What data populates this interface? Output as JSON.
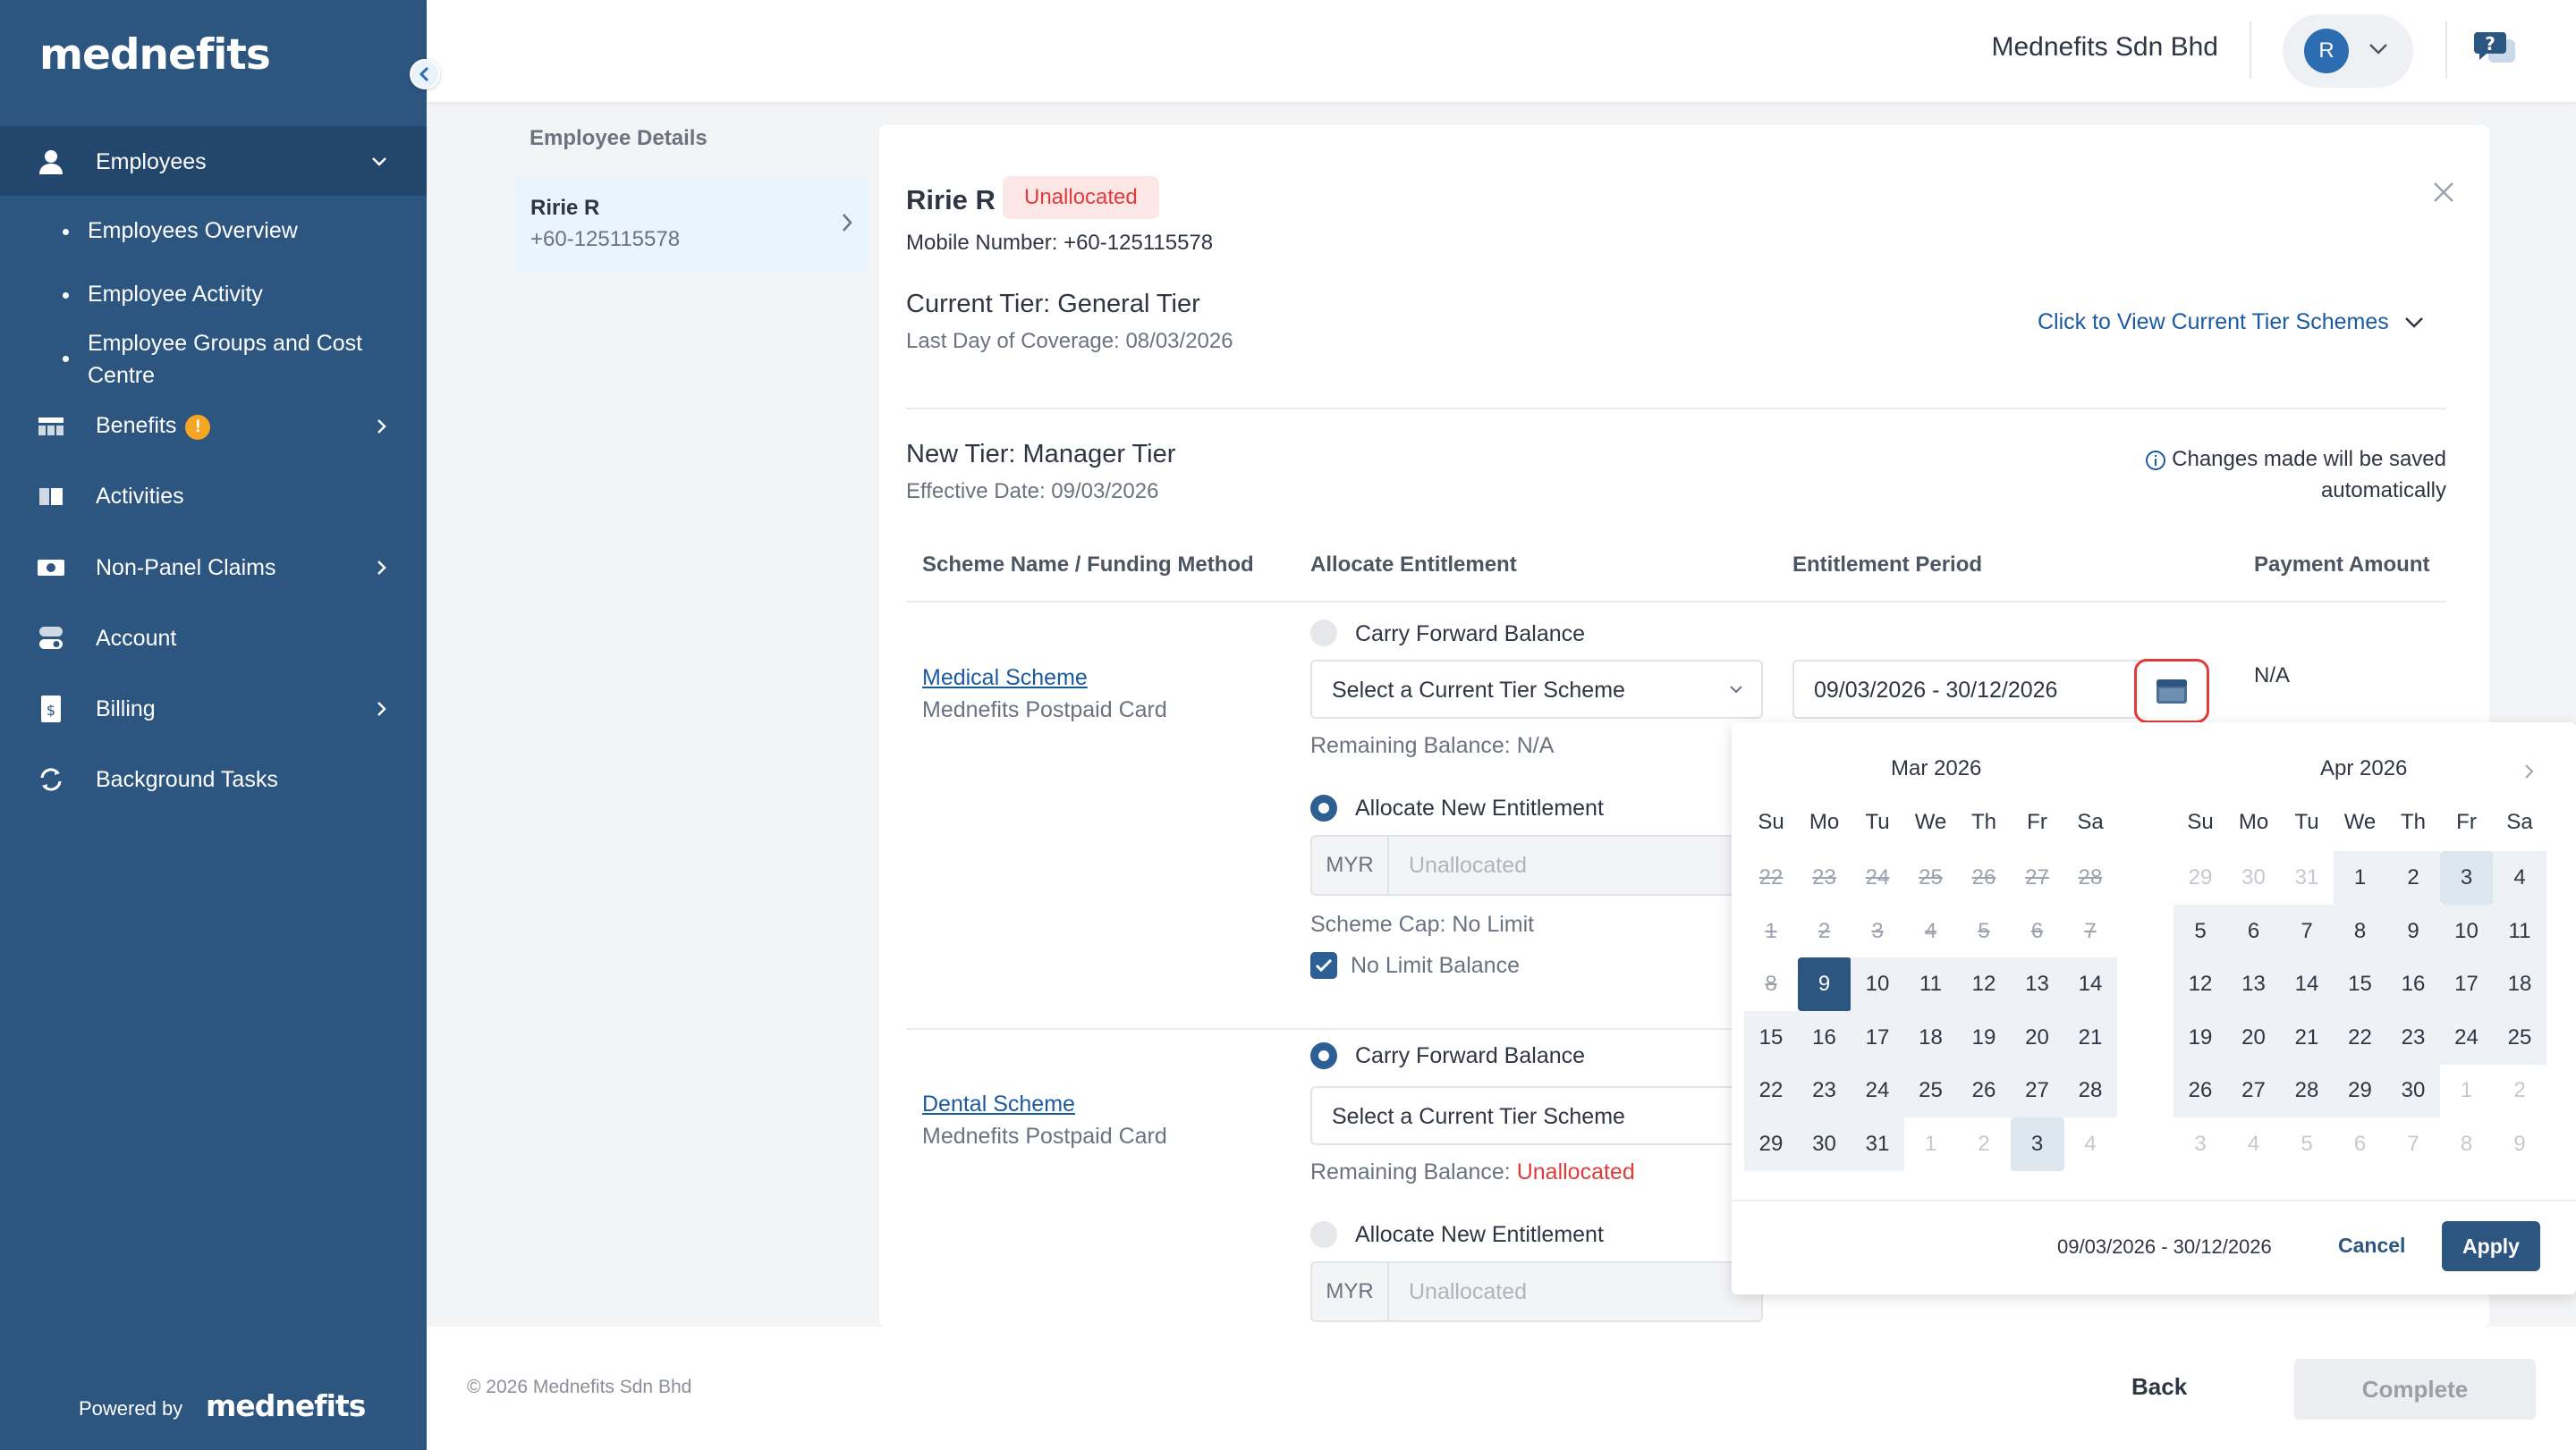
{
  "app": {
    "logo_text": "mednefits",
    "company": "Mednefits Sdn Bhd",
    "user_initial": "R"
  },
  "sidebar": {
    "items": [
      {
        "label": "Employees",
        "icon": "person-icon",
        "active": true,
        "expanded": true
      },
      {
        "label": "Benefits",
        "icon": "table-icon",
        "badge": "!"
      },
      {
        "label": "Activities",
        "icon": "book-icon"
      },
      {
        "label": "Non-Panel Claims",
        "icon": "cash-icon"
      },
      {
        "label": "Account",
        "icon": "toggle-icon"
      },
      {
        "label": "Billing",
        "icon": "invoice-icon"
      },
      {
        "label": "Background Tasks",
        "icon": "sync-icon"
      }
    ],
    "sub_items": [
      "Employees Overview",
      "Employee Activity",
      "Employee Groups and Cost Centre"
    ],
    "powered_by": "Powered by",
    "powered_logo": "mednefits"
  },
  "employee_list": {
    "title": "Employee Details",
    "selected": {
      "name": "Ririe R",
      "phone": "+60-125115578"
    }
  },
  "detail": {
    "name": "Ririe R",
    "status": "Unallocated",
    "mobile": "Mobile Number: +60-125115578",
    "current_tier": "Current Tier: General Tier",
    "last_day": "Last Day of Coverage: 08/03/2026",
    "view_schemes_link": "Click to View Current Tier Schemes",
    "new_tier": "New Tier: Manager Tier",
    "effective_date": "Effective Date: 09/03/2026",
    "autosave_line1": "Changes made will be saved",
    "autosave_line2": "automatically"
  },
  "table": {
    "headers": [
      "Scheme Name / Funding Method",
      "Allocate Entitlement",
      "Entitlement Period",
      "Payment Amount"
    ]
  },
  "medical": {
    "name": "Medical Scheme",
    "funding": "Mednefits Postpaid Card",
    "carry_forward": "Carry Forward Balance",
    "select_value": "Select a Current Tier Scheme",
    "remaining": "Remaining Balance: N/A",
    "allocate_new": "Allocate New Entitlement",
    "currency": "MYR",
    "amount_placeholder": "Unallocated",
    "scheme_cap": "Scheme Cap: No Limit",
    "no_limit": "No Limit Balance",
    "period": "09/03/2026 - 30/12/2026",
    "payment": "N/A"
  },
  "dental": {
    "name": "Dental Scheme",
    "funding": "Mednefits Postpaid Card",
    "carry_forward": "Carry Forward Balance",
    "select_value": "Select a Current Tier Scheme",
    "remaining_label": "Remaining Balance: ",
    "remaining_value": "Unallocated",
    "allocate_new": "Allocate New Entitlement",
    "currency": "MYR",
    "amount_placeholder": "Unallocated"
  },
  "calendar": {
    "dow": [
      "Su",
      "Mo",
      "Tu",
      "We",
      "Th",
      "Fr",
      "Sa"
    ],
    "months": [
      {
        "title": "Mar 2026",
        "weeks": [
          [
            "22",
            "23",
            "24",
            "25",
            "26",
            "27",
            "28"
          ],
          [
            "1",
            "2",
            "3",
            "4",
            "5",
            "6",
            "7"
          ],
          [
            "8",
            "9",
            "10",
            "11",
            "12",
            "13",
            "14"
          ],
          [
            "15",
            "16",
            "17",
            "18",
            "19",
            "20",
            "21"
          ],
          [
            "22",
            "23",
            "24",
            "25",
            "26",
            "27",
            "28"
          ],
          [
            "29",
            "30",
            "31",
            "1",
            "2",
            "3",
            "4"
          ]
        ]
      },
      {
        "title": "Apr 2026",
        "weeks": [
          [
            "29",
            "30",
            "31",
            "1",
            "2",
            "3",
            "4"
          ],
          [
            "5",
            "6",
            "7",
            "8",
            "9",
            "10",
            "11"
          ],
          [
            "12",
            "13",
            "14",
            "15",
            "16",
            "17",
            "18"
          ],
          [
            "19",
            "20",
            "21",
            "22",
            "23",
            "24",
            "25"
          ],
          [
            "26",
            "27",
            "28",
            "29",
            "30",
            "1",
            "2"
          ],
          [
            "3",
            "4",
            "5",
            "6",
            "7",
            "8",
            "9"
          ]
        ]
      }
    ],
    "range_text": "09/03/2026 - 30/12/2026",
    "cancel": "Cancel",
    "apply": "Apply"
  },
  "footer": {
    "copyright": "© 2026 Mednefits Sdn Bhd",
    "back": "Back",
    "complete": "Complete"
  }
}
